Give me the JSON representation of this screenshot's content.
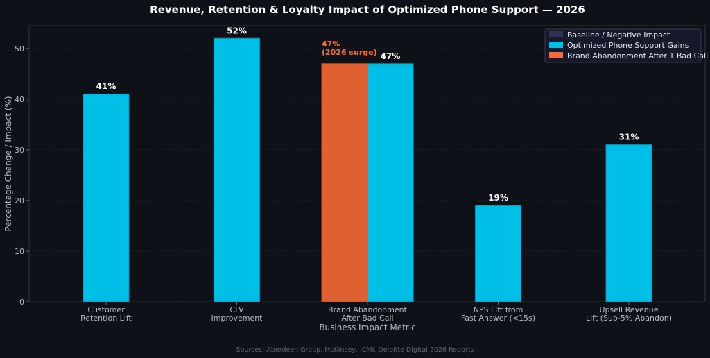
{
  "chart_data": {
    "type": "bar",
    "title": "Revenue, Retention & Loyalty Impact of Optimized Phone Support — 2026",
    "xlabel": "Business Impact Metric",
    "ylabel": "Percentage Change / Impact (%)",
    "ylim": [
      0,
      54.5
    ],
    "yticks": [
      0,
      10,
      20,
      30,
      40,
      50
    ],
    "categories": [
      [
        "Customer",
        "Retention Lift"
      ],
      [
        "CLV",
        "Improvement"
      ],
      [
        "Brand Abandonment",
        "After Bad Call"
      ],
      [
        "NPS Lift from",
        "Fast Answer (<15s)"
      ],
      [
        "Upsell Revenue",
        "Lift (Sub-5% Abandon)"
      ]
    ],
    "series": [
      {
        "name": "Baseline / Negative Impact",
        "color": "#2e3256",
        "values": [
          0,
          0,
          0,
          0,
          0
        ]
      },
      {
        "name": "Optimized Phone Support Gains",
        "color": "#00bfe6",
        "values": [
          41,
          52,
          47,
          19,
          31
        ]
      },
      {
        "name": "Brand Abandonment After 1 Bad Call",
        "color": "#ff6b35",
        "values": [
          null,
          null,
          47,
          null,
          null
        ]
      }
    ],
    "value_labels": [
      "41%",
      "52%",
      "47%",
      "19%",
      "31%"
    ],
    "annotation": {
      "category_index": 2,
      "lines": [
        "47%",
        "(2026 surge)"
      ]
    },
    "legend_position": "top-right",
    "grid": true,
    "source": "Sources: Aberdeen Group, McKinsey, ICMI, Deloitte Digital 2026 Reports"
  }
}
